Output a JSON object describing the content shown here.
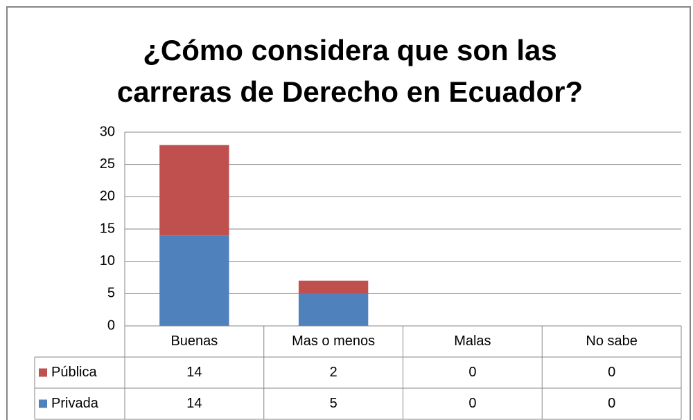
{
  "chart_data": {
    "type": "stacked_bar",
    "title_lines": [
      "¿Cómo considera que son las",
      "carreras de Derecho en Ecuador?"
    ],
    "categories": [
      "Buenas",
      "Mas o menos",
      "Malas",
      "No sabe"
    ],
    "series": [
      {
        "name": "Privada",
        "color": "#4f81bd",
        "values": [
          14,
          5,
          0,
          0
        ]
      },
      {
        "name": "Pública",
        "color": "#c0504d",
        "values": [
          14,
          2,
          0,
          0
        ]
      }
    ],
    "ylim": [
      0,
      30
    ],
    "yticks": [
      0,
      5,
      10,
      15,
      20,
      25,
      30
    ],
    "grid": true,
    "legend": "table"
  }
}
